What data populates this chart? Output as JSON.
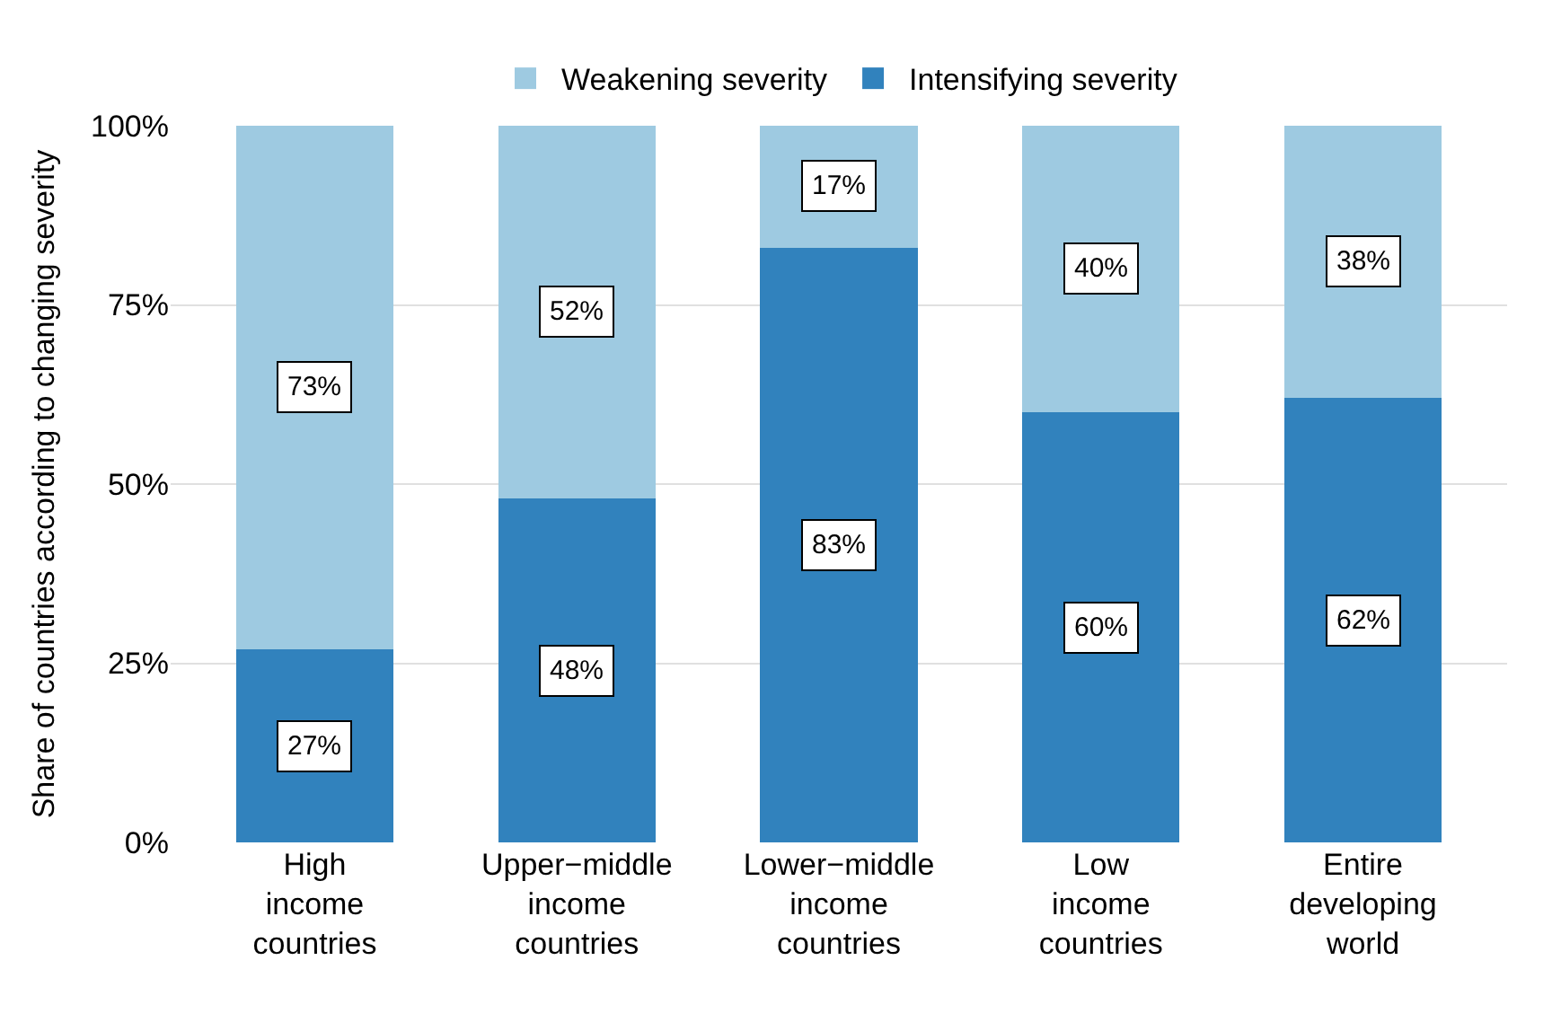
{
  "chart_data": {
    "type": "bar",
    "stacked": true,
    "ylabel": "Share of countries according to changing severity",
    "categories": [
      "High income countries",
      "Upper−middle income countries",
      "Lower−middle income countries",
      "Low income countries",
      "Entire developing world"
    ],
    "series": [
      {
        "name": "Intensifying severity",
        "color": "#3182bd",
        "values": [
          27,
          48,
          83,
          60,
          62
        ],
        "value_labels": [
          "27%",
          "48%",
          "83%",
          "60%",
          "62%"
        ]
      },
      {
        "name": "Weakening severity",
        "color": "#9ecae1",
        "values": [
          73,
          52,
          17,
          40,
          38
        ],
        "value_labels": [
          "73%",
          "52%",
          "17%",
          "40%",
          "38%"
        ]
      }
    ],
    "ylim": [
      0,
      100
    ],
    "yticks": [
      {
        "value": 0,
        "label": "0%"
      },
      {
        "value": 25,
        "label": "25%"
      },
      {
        "value": 50,
        "label": "50%"
      },
      {
        "value": 75,
        "label": "75%"
      },
      {
        "value": 100,
        "label": "100%"
      }
    ],
    "grid": "y",
    "legend": "top"
  }
}
